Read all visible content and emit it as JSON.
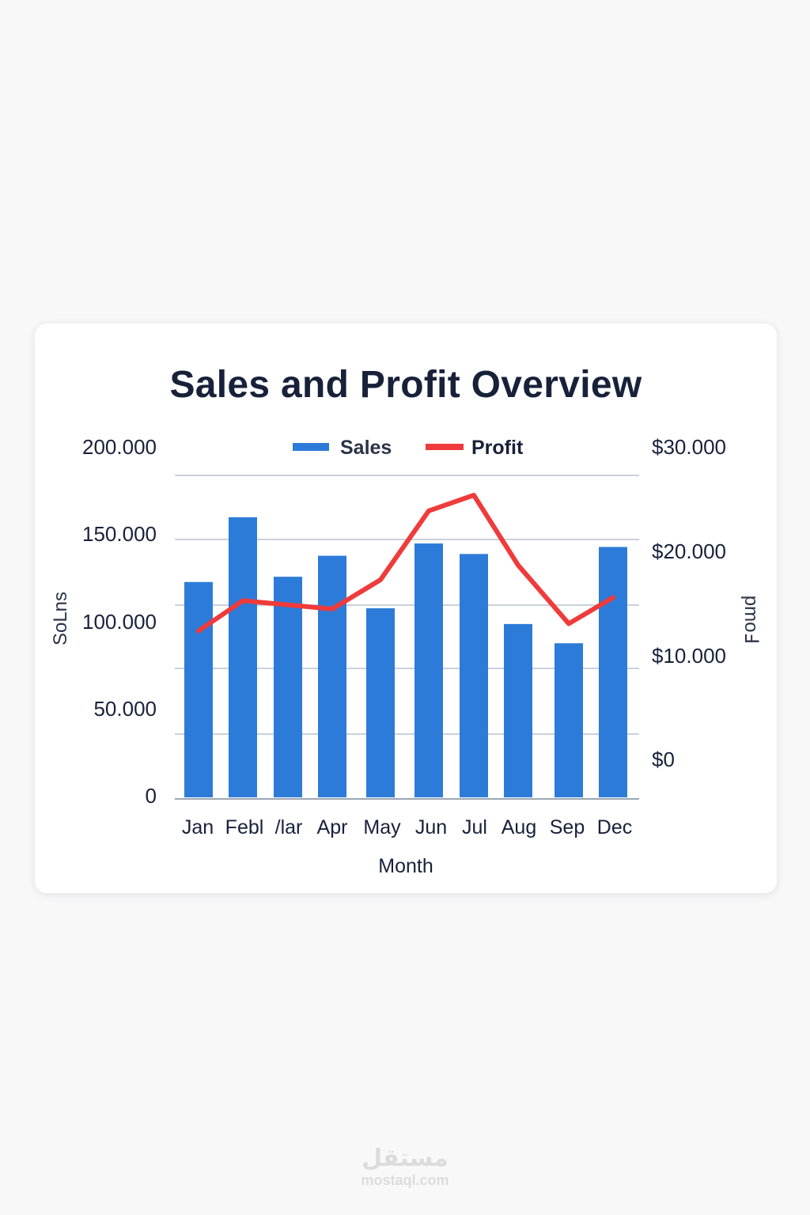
{
  "card": {
    "title": "Sales and Profit Overview"
  },
  "colors": {
    "sales": "#2d7bd9",
    "profit": "#ef3b3b",
    "grid": "#b7c2cf",
    "text": "#18213a"
  },
  "legend": {
    "sales_label": "Sales",
    "profit_label": "Profit"
  },
  "axes": {
    "left_label": "SoLns",
    "right_label": "pmoℲ",
    "x_label": "Month",
    "left_ticks": [
      "200.000",
      "150.000",
      "100.000",
      "50.000",
      "0"
    ],
    "right_ticks": [
      "$30.000",
      "$20.000",
      "$10.000",
      "$0"
    ],
    "x_ticks": [
      "Jan",
      "Febl",
      "/lar",
      "Apr",
      "May",
      "Jun",
      "Jul",
      "Aug",
      "Sep",
      "Dec"
    ]
  },
  "chart_data": {
    "type": "bar",
    "title": "Sales and Profit Overview",
    "xlabel": "Month",
    "ylabel": "Sales",
    "y2label": "Profit",
    "categories": [
      "Jan",
      "Feb",
      "Mar",
      "Apr",
      "May",
      "Jun",
      "Jul",
      "Aug",
      "Sep",
      "Dec"
    ],
    "series": [
      {
        "name": "Sales",
        "type": "bar",
        "axis": "left",
        "values": [
          123000,
          160000,
          126000,
          138000,
          108000,
          145000,
          139000,
          99000,
          88000,
          143000
        ]
      },
      {
        "name": "Profit",
        "type": "line",
        "axis": "right",
        "values": [
          12300,
          15200,
          14800,
          14400,
          17200,
          23800,
          25300,
          18600,
          13000,
          15500
        ]
      }
    ],
    "ylim": [
      0,
      200000
    ],
    "y2lim": [
      0,
      30000
    ],
    "left_ticks": [
      0,
      50000,
      100000,
      150000,
      200000
    ],
    "right_ticks": [
      0,
      10000,
      20000,
      30000
    ],
    "grid": true,
    "legend_position": "top"
  },
  "watermark": {
    "arabic": "مستقل",
    "latin": "mostaql.com"
  }
}
